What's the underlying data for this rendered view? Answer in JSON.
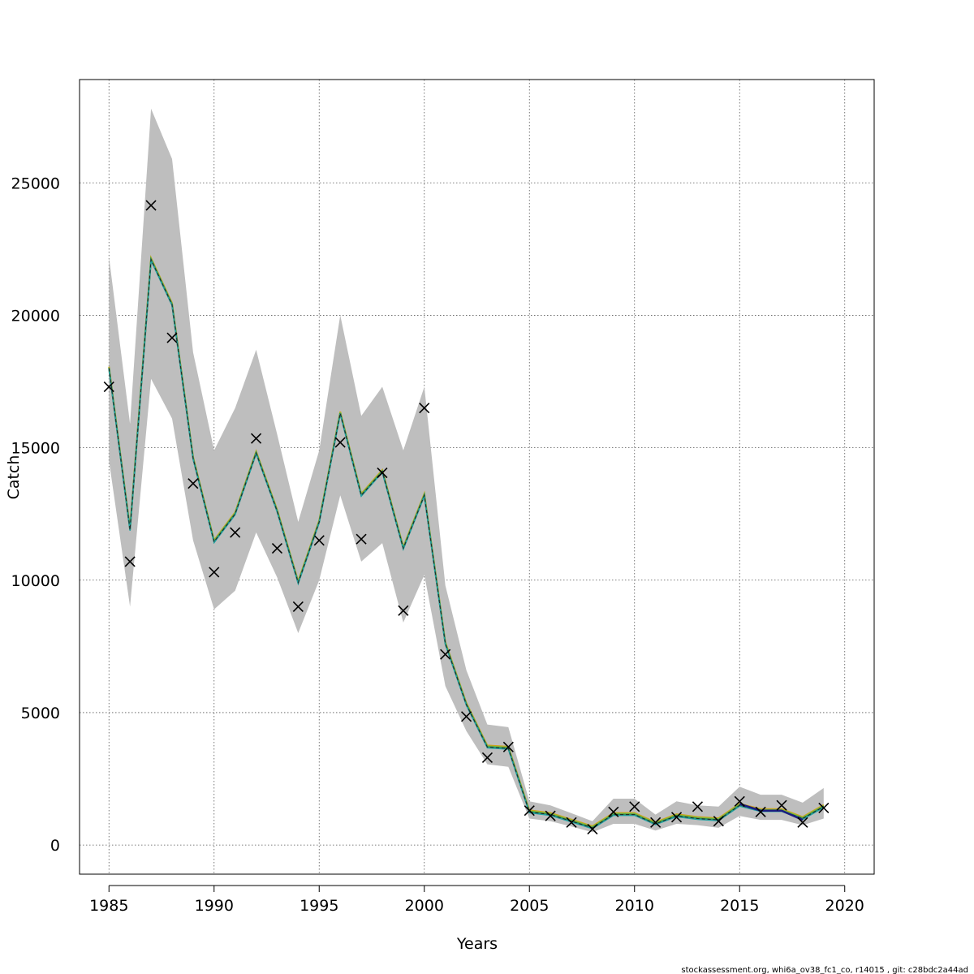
{
  "chart_data": {
    "type": "line",
    "title": "",
    "xlabel": "Years",
    "ylabel": "Catch",
    "xlim": [
      1983.6,
      2021.4
    ],
    "ylim": [
      -1100,
      28900
    ],
    "x_ticks": [
      1985,
      1990,
      1995,
      2000,
      2005,
      2010,
      2015,
      2020
    ],
    "y_ticks": [
      0,
      5000,
      10000,
      15000,
      20000,
      25000
    ],
    "grid": true,
    "legend": "none",
    "x": [
      1985,
      1986,
      1987,
      1988,
      1989,
      1990,
      1991,
      1992,
      1993,
      1994,
      1995,
      1996,
      1997,
      1998,
      1999,
      2000,
      2001,
      2002,
      2003,
      2004,
      2005,
      2006,
      2007,
      2008,
      2009,
      2010,
      2011,
      2012,
      2013,
      2014,
      2015,
      2016,
      2017,
      2018,
      2019
    ],
    "series": [
      {
        "values": [
          18000,
          11900,
          22100,
          20400,
          14600,
          11450,
          12500,
          14800,
          12600,
          9900,
          12200,
          16300,
          13200,
          14100,
          11200,
          13200,
          7600,
          5300,
          3700,
          3650,
          1250,
          1150,
          900,
          650,
          1150,
          1150,
          800,
          1100,
          1000,
          950,
          1500,
          1300,
          1300,
          1000,
          1450
        ],
        "color": "#2e8b57"
      },
      {
        "values": [
          null,
          null,
          null,
          null,
          null,
          null,
          null,
          null,
          null,
          null,
          null,
          null,
          null,
          null,
          null,
          null,
          null,
          null,
          null,
          null,
          null,
          null,
          null,
          null,
          null,
          null,
          null,
          null,
          null,
          null,
          1550,
          1300,
          1300,
          950,
          null
        ],
        "color": "#1c1c80"
      }
    ],
    "band": {
      "lower": [
        14500,
        9000,
        17600,
        16100,
        11500,
        8900,
        9600,
        11800,
        10100,
        8000,
        10000,
        13200,
        10700,
        11400,
        8400,
        10200,
        6000,
        4300,
        3050,
        2950,
        1000,
        900,
        700,
        480,
        800,
        800,
        550,
        800,
        750,
        650,
        1100,
        950,
        950,
        750,
        1000
      ],
      "upper": [
        22200,
        15900,
        27800,
        25900,
        18600,
        14900,
        16500,
        18700,
        15500,
        12200,
        14900,
        20000,
        16200,
        17300,
        14900,
        17300,
        9800,
        6600,
        4550,
        4450,
        1650,
        1500,
        1200,
        900,
        1750,
        1750,
        1150,
        1650,
        1500,
        1450,
        2200,
        1900,
        1900,
        1600,
        2150
      ],
      "color": "#bebebe"
    },
    "observations": {
      "x": [
        1985,
        1986,
        1987,
        1988,
        1989,
        1990,
        1991,
        1992,
        1993,
        1994,
        1995,
        1996,
        1997,
        1998,
        1999,
        2000,
        2001,
        2002,
        2003,
        2004,
        2005,
        2006,
        2007,
        2008,
        2009,
        2010,
        2011,
        2012,
        2013,
        2014,
        2015,
        2016,
        2017,
        2018,
        2019
      ],
      "y": [
        17300,
        10700,
        24150,
        19150,
        13650,
        10300,
        11800,
        15350,
        11200,
        9000,
        11500,
        15200,
        11550,
        14050,
        8850,
        16500,
        7200,
        4850,
        3300,
        3700,
        1300,
        1100,
        850,
        600,
        1250,
        1450,
        850,
        1050,
        1450,
        900,
        1650,
        1250,
        1500,
        850,
        1400
      ]
    }
  },
  "footer": {
    "note": "stockassessment.org, whi6a_ov38_fc1_co, r14015 , git: c28bdc2a44ad"
  }
}
